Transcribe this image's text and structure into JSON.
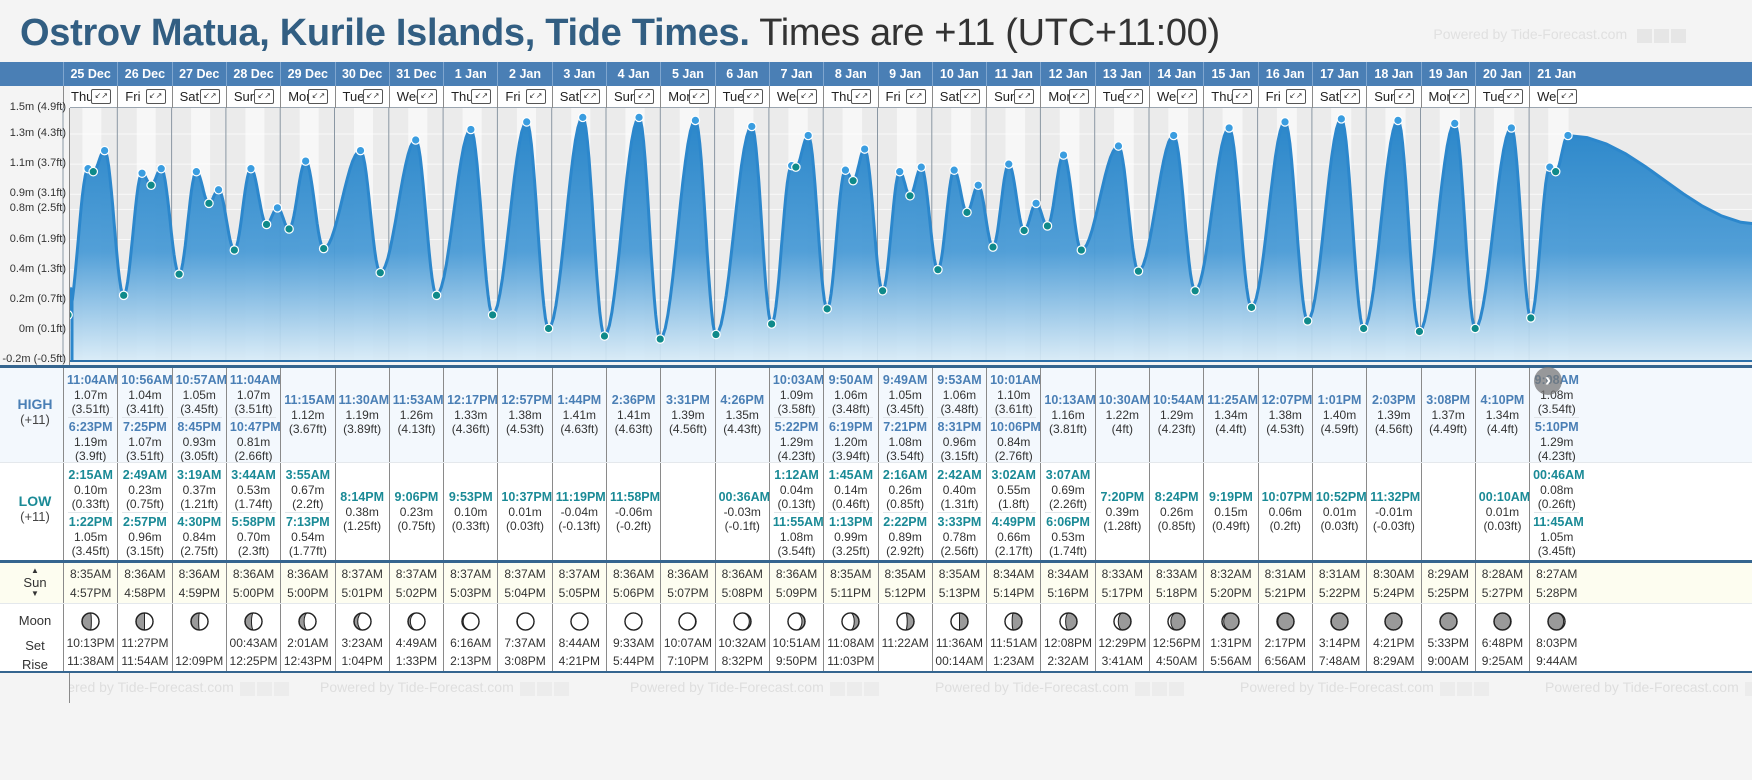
{
  "header": {
    "location_title": "Ostrov Matua, Kurile Islands, Tide Times.",
    "timezone_text": "Times are +11 (UTC+11:00)",
    "powered_by": "Powered by Tide-Forecast.com"
  },
  "labels": {
    "high": "HIGH",
    "high_sub": "(+11)",
    "low": "LOW",
    "low_sub": "(+11)",
    "sun": "Sun",
    "moon": "Moon",
    "moon_set": "Set",
    "moon_rise": "Rise",
    "expand_icon": "↙↗",
    "next_icon": "›"
  },
  "colors": {
    "header_blue": "#4a7fb5",
    "title_blue": "#325e82",
    "high_time": "#4a7fb5",
    "low_time": "#1a8a96",
    "tide_fill_top": "#2a86c9",
    "tide_line": "#2c87cc",
    "high_marker": "#3a9de0",
    "low_marker": "#0f8a8a"
  },
  "days": [
    {
      "date": "25 Dec",
      "dow": "Thu",
      "high": [
        {
          "t": "11:04AM",
          "m": "1.07m",
          "ft": "(3.51ft)"
        },
        {
          "t": "6:23PM",
          "m": "1.19m",
          "ft": "(3.9ft)"
        }
      ],
      "low": [
        {
          "t": "2:15AM",
          "m": "0.10m",
          "ft": "(0.33ft)"
        },
        {
          "t": "1:22PM",
          "m": "1.05m",
          "ft": "(3.45ft)"
        }
      ],
      "sunrise": "8:35AM",
      "sunset": "4:57PM",
      "moon_phase": "waxing-half",
      "moon_illum": 0.45,
      "moonset": "10:13PM",
      "moonrise": "11:38AM"
    },
    {
      "date": "26 Dec",
      "dow": "Fri",
      "high": [
        {
          "t": "10:56AM",
          "m": "1.04m",
          "ft": "(3.41ft)"
        },
        {
          "t": "7:25PM",
          "m": "1.07m",
          "ft": "(3.51ft)"
        }
      ],
      "low": [
        {
          "t": "2:49AM",
          "m": "0.23m",
          "ft": "(0.75ft)"
        },
        {
          "t": "2:57PM",
          "m": "0.96m",
          "ft": "(3.15ft)"
        }
      ],
      "sunrise": "8:36AM",
      "sunset": "4:58PM",
      "moon_phase": "waxing-half",
      "moon_illum": 0.5,
      "moonset": "11:27PM",
      "moonrise": "11:54AM"
    },
    {
      "date": "27 Dec",
      "dow": "Sat",
      "high": [
        {
          "t": "10:57AM",
          "m": "1.05m",
          "ft": "(3.45ft)"
        },
        {
          "t": "8:45PM",
          "m": "0.93m",
          "ft": "(3.05ft)"
        }
      ],
      "low": [
        {
          "t": "3:19AM",
          "m": "0.37m",
          "ft": "(1.21ft)"
        },
        {
          "t": "4:30PM",
          "m": "0.84m",
          "ft": "(2.75ft)"
        }
      ],
      "sunrise": "8:36AM",
      "sunset": "4:59PM",
      "moon_phase": "waxing-gibbous",
      "moon_illum": 0.55,
      "moonset": "",
      "moonrise": "12:09PM"
    },
    {
      "date": "28 Dec",
      "dow": "Sun",
      "high": [
        {
          "t": "11:04AM",
          "m": "1.07m",
          "ft": "(3.51ft)"
        },
        {
          "t": "10:47PM",
          "m": "0.81m",
          "ft": "(2.66ft)"
        }
      ],
      "low": [
        {
          "t": "3:44AM",
          "m": "0.53m",
          "ft": "(1.74ft)"
        },
        {
          "t": "5:58PM",
          "m": "0.70m",
          "ft": "(2.3ft)"
        }
      ],
      "sunrise": "8:36AM",
      "sunset": "5:00PM",
      "moon_phase": "waxing-gibbous",
      "moon_illum": 0.62,
      "moonset": "00:43AM",
      "moonrise": "12:25PM"
    },
    {
      "date": "29 Dec",
      "dow": "Mon",
      "high": [
        {
          "t": "11:15AM",
          "m": "1.12m",
          "ft": "(3.67ft)"
        }
      ],
      "low": [
        {
          "t": "3:55AM",
          "m": "0.67m",
          "ft": "(2.2ft)"
        },
        {
          "t": "7:13PM",
          "m": "0.54m",
          "ft": "(1.77ft)"
        }
      ],
      "sunrise": "8:36AM",
      "sunset": "5:00PM",
      "moon_phase": "waxing-gibbous",
      "moon_illum": 0.7,
      "moonset": "2:01AM",
      "moonrise": "12:43PM"
    },
    {
      "date": "30 Dec",
      "dow": "Tue",
      "high": [
        {
          "t": "11:30AM",
          "m": "1.19m",
          "ft": "(3.89ft)"
        }
      ],
      "low": [
        {
          "t": "8:14PM",
          "m": "0.38m",
          "ft": "(1.25ft)"
        }
      ],
      "sunrise": "8:37AM",
      "sunset": "5:01PM",
      "moon_phase": "waxing-gibbous",
      "moon_illum": 0.78,
      "moonset": "3:23AM",
      "moonrise": "1:04PM"
    },
    {
      "date": "31 Dec",
      "dow": "Wed",
      "high": [
        {
          "t": "11:53AM",
          "m": "1.26m",
          "ft": "(4.13ft)"
        }
      ],
      "low": [
        {
          "t": "9:06PM",
          "m": "0.23m",
          "ft": "(0.75ft)"
        }
      ],
      "sunrise": "8:37AM",
      "sunset": "5:02PM",
      "moon_phase": "waxing-gibbous",
      "moon_illum": 0.86,
      "moonset": "4:49AM",
      "moonrise": "1:33PM"
    },
    {
      "date": "1 Jan",
      "dow": "Thu",
      "high": [
        {
          "t": "12:17PM",
          "m": "1.33m",
          "ft": "(4.36ft)"
        }
      ],
      "low": [
        {
          "t": "9:53PM",
          "m": "0.10m",
          "ft": "(0.33ft)"
        }
      ],
      "sunrise": "8:37AM",
      "sunset": "5:03PM",
      "moon_phase": "waxing-gibbous",
      "moon_illum": 0.93,
      "moonset": "6:16AM",
      "moonrise": "2:13PM"
    },
    {
      "date": "2 Jan",
      "dow": "Fri",
      "high": [
        {
          "t": "12:57PM",
          "m": "1.38m",
          "ft": "(4.53ft)"
        }
      ],
      "low": [
        {
          "t": "10:37PM",
          "m": "0.01m",
          "ft": "(0.03ft)"
        }
      ],
      "sunrise": "8:37AM",
      "sunset": "5:04PM",
      "moon_phase": "full",
      "moon_illum": 0.98,
      "moonset": "7:37AM",
      "moonrise": "3:08PM"
    },
    {
      "date": "3 Jan",
      "dow": "Sat",
      "high": [
        {
          "t": "1:44PM",
          "m": "1.41m",
          "ft": "(4.63ft)"
        }
      ],
      "low": [
        {
          "t": "11:19PM",
          "m": "-0.04m",
          "ft": "(-0.13ft)"
        }
      ],
      "sunrise": "8:37AM",
      "sunset": "5:05PM",
      "moon_phase": "full",
      "moon_illum": 1.0,
      "moonset": "8:44AM",
      "moonrise": "4:21PM"
    },
    {
      "date": "4 Jan",
      "dow": "Sun",
      "high": [
        {
          "t": "2:36PM",
          "m": "1.41m",
          "ft": "(4.63ft)"
        }
      ],
      "low": [
        {
          "t": "11:58PM",
          "m": "-0.06m",
          "ft": "(-0.2ft)"
        }
      ],
      "sunrise": "8:36AM",
      "sunset": "5:06PM",
      "moon_phase": "full",
      "moon_illum": 1.0,
      "moonset": "9:33AM",
      "moonrise": "5:44PM"
    },
    {
      "date": "5 Jan",
      "dow": "Mon",
      "high": [
        {
          "t": "3:31PM",
          "m": "1.39m",
          "ft": "(4.56ft)"
        }
      ],
      "low": [],
      "sunrise": "8:36AM",
      "sunset": "5:07PM",
      "moon_phase": "waning-gibbous",
      "moon_illum": 0.97,
      "moonset": "10:07AM",
      "moonrise": "7:10PM"
    },
    {
      "date": "6 Jan",
      "dow": "Tue",
      "high": [
        {
          "t": "4:26PM",
          "m": "1.35m",
          "ft": "(4.43ft)"
        }
      ],
      "low": [
        {
          "t": "00:36AM",
          "m": "-0.03m",
          "ft": "(-0.1ft)"
        }
      ],
      "sunrise": "8:36AM",
      "sunset": "5:08PM",
      "moon_phase": "waning-gibbous",
      "moon_illum": 0.9,
      "moonset": "10:32AM",
      "moonrise": "8:32PM"
    },
    {
      "date": "7 Jan",
      "dow": "Wed",
      "high": [
        {
          "t": "10:03AM",
          "m": "1.09m",
          "ft": "(3.58ft)"
        },
        {
          "t": "5:22PM",
          "m": "1.29m",
          "ft": "(4.23ft)"
        }
      ],
      "low": [
        {
          "t": "1:12AM",
          "m": "0.04m",
          "ft": "(0.13ft)"
        },
        {
          "t": "11:55AM",
          "m": "1.08m",
          "ft": "(3.54ft)"
        }
      ],
      "sunrise": "8:36AM",
      "sunset": "5:09PM",
      "moon_phase": "waning-gibbous",
      "moon_illum": 0.82,
      "moonset": "10:51AM",
      "moonrise": "9:50PM"
    },
    {
      "date": "8 Jan",
      "dow": "Thu",
      "high": [
        {
          "t": "9:50AM",
          "m": "1.06m",
          "ft": "(3.48ft)"
        },
        {
          "t": "6:19PM",
          "m": "1.20m",
          "ft": "(3.94ft)"
        }
      ],
      "low": [
        {
          "t": "1:45AM",
          "m": "0.14m",
          "ft": "(0.46ft)"
        },
        {
          "t": "1:13PM",
          "m": "0.99m",
          "ft": "(3.25ft)"
        }
      ],
      "sunrise": "8:35AM",
      "sunset": "5:11PM",
      "moon_phase": "waning-gibbous",
      "moon_illum": 0.72,
      "moonset": "11:08AM",
      "moonrise": "11:03PM"
    },
    {
      "date": "9 Jan",
      "dow": "Fri",
      "high": [
        {
          "t": "9:49AM",
          "m": "1.05m",
          "ft": "(3.45ft)"
        },
        {
          "t": "7:21PM",
          "m": "1.08m",
          "ft": "(3.54ft)"
        }
      ],
      "low": [
        {
          "t": "2:16AM",
          "m": "0.26m",
          "ft": "(0.85ft)"
        },
        {
          "t": "2:22PM",
          "m": "0.89m",
          "ft": "(2.92ft)"
        }
      ],
      "sunrise": "8:35AM",
      "sunset": "5:12PM",
      "moon_phase": "waning-half",
      "moon_illum": 0.6,
      "moonset": "11:22AM",
      "moonrise": ""
    },
    {
      "date": "10 Jan",
      "dow": "Sat",
      "high": [
        {
          "t": "9:53AM",
          "m": "1.06m",
          "ft": "(3.48ft)"
        },
        {
          "t": "8:31PM",
          "m": "0.96m",
          "ft": "(3.15ft)"
        }
      ],
      "low": [
        {
          "t": "2:42AM",
          "m": "0.40m",
          "ft": "(1.31ft)"
        },
        {
          "t": "3:33PM",
          "m": "0.78m",
          "ft": "(2.56ft)"
        }
      ],
      "sunrise": "8:35AM",
      "sunset": "5:13PM",
      "moon_phase": "waning-half",
      "moon_illum": 0.5,
      "moonset": "11:36AM",
      "moonrise": "00:14AM"
    },
    {
      "date": "11 Jan",
      "dow": "Sun",
      "high": [
        {
          "t": "10:01AM",
          "m": "1.10m",
          "ft": "(3.61ft)"
        },
        {
          "t": "10:06PM",
          "m": "0.84m",
          "ft": "(2.76ft)"
        }
      ],
      "low": [
        {
          "t": "3:02AM",
          "m": "0.55m",
          "ft": "(1.8ft)"
        },
        {
          "t": "4:49PM",
          "m": "0.66m",
          "ft": "(2.17ft)"
        }
      ],
      "sunrise": "8:34AM",
      "sunset": "5:14PM",
      "moon_phase": "waning-half",
      "moon_illum": 0.42,
      "moonset": "11:51AM",
      "moonrise": "1:23AM"
    },
    {
      "date": "12 Jan",
      "dow": "Mon",
      "high": [
        {
          "t": "10:13AM",
          "m": "1.16m",
          "ft": "(3.81ft)"
        }
      ],
      "low": [
        {
          "t": "3:07AM",
          "m": "0.69m",
          "ft": "(2.26ft)"
        },
        {
          "t": "6:06PM",
          "m": "0.53m",
          "ft": "(1.74ft)"
        }
      ],
      "sunrise": "8:34AM",
      "sunset": "5:16PM",
      "moon_phase": "waning-crescent",
      "moon_illum": 0.33,
      "moonset": "12:08PM",
      "moonrise": "2:32AM"
    },
    {
      "date": "13 Jan",
      "dow": "Tue",
      "high": [
        {
          "t": "10:30AM",
          "m": "1.22m",
          "ft": "(4ft)"
        }
      ],
      "low": [
        {
          "t": "7:20PM",
          "m": "0.39m",
          "ft": "(1.28ft)"
        }
      ],
      "sunrise": "8:33AM",
      "sunset": "5:17PM",
      "moon_phase": "waning-crescent",
      "moon_illum": 0.25,
      "moonset": "12:29PM",
      "moonrise": "3:41AM"
    },
    {
      "date": "14 Jan",
      "dow": "Wed",
      "high": [
        {
          "t": "10:54AM",
          "m": "1.29m",
          "ft": "(4.23ft)"
        }
      ],
      "low": [
        {
          "t": "8:24PM",
          "m": "0.26m",
          "ft": "(0.85ft)"
        }
      ],
      "sunrise": "8:33AM",
      "sunset": "5:18PM",
      "moon_phase": "waning-crescent",
      "moon_illum": 0.17,
      "moonset": "12:56PM",
      "moonrise": "4:50AM"
    },
    {
      "date": "15 Jan",
      "dow": "Thu",
      "high": [
        {
          "t": "11:25AM",
          "m": "1.34m",
          "ft": "(4.4ft)"
        }
      ],
      "low": [
        {
          "t": "9:19PM",
          "m": "0.15m",
          "ft": "(0.49ft)"
        }
      ],
      "sunrise": "8:32AM",
      "sunset": "5:20PM",
      "moon_phase": "waning-crescent",
      "moon_illum": 0.1,
      "moonset": "1:31PM",
      "moonrise": "5:56AM"
    },
    {
      "date": "16 Jan",
      "dow": "Fri",
      "high": [
        {
          "t": "12:07PM",
          "m": "1.38m",
          "ft": "(4.53ft)"
        }
      ],
      "low": [
        {
          "t": "10:07PM",
          "m": "0.06m",
          "ft": "(0.2ft)"
        }
      ],
      "sunrise": "8:31AM",
      "sunset": "5:21PM",
      "moon_phase": "waning-crescent",
      "moon_illum": 0.05,
      "moonset": "2:17PM",
      "moonrise": "6:56AM"
    },
    {
      "date": "17 Jan",
      "dow": "Sat",
      "high": [
        {
          "t": "1:01PM",
          "m": "1.40m",
          "ft": "(4.59ft)"
        }
      ],
      "low": [
        {
          "t": "10:52PM",
          "m": "0.01m",
          "ft": "(0.03ft)"
        }
      ],
      "sunrise": "8:31AM",
      "sunset": "5:22PM",
      "moon_phase": "new",
      "moon_illum": 0.02,
      "moonset": "3:14PM",
      "moonrise": "7:48AM"
    },
    {
      "date": "18 Jan",
      "dow": "Sun",
      "high": [
        {
          "t": "2:03PM",
          "m": "1.39m",
          "ft": "(4.56ft)"
        }
      ],
      "low": [
        {
          "t": "11:32PM",
          "m": "-0.01m",
          "ft": "(-0.03ft)"
        }
      ],
      "sunrise": "8:30AM",
      "sunset": "5:24PM",
      "moon_phase": "new",
      "moon_illum": 0.0,
      "moonset": "4:21PM",
      "moonrise": "8:29AM"
    },
    {
      "date": "19 Jan",
      "dow": "Mon",
      "high": [
        {
          "t": "3:08PM",
          "m": "1.37m",
          "ft": "(4.49ft)"
        }
      ],
      "low": [],
      "sunrise": "8:29AM",
      "sunset": "5:25PM",
      "moon_phase": "new",
      "moon_illum": 0.0,
      "moonset": "5:33PM",
      "moonrise": "9:00AM"
    },
    {
      "date": "20 Jan",
      "dow": "Tue",
      "high": [
        {
          "t": "4:10PM",
          "m": "1.34m",
          "ft": "(4.4ft)"
        }
      ],
      "low": [
        {
          "t": "00:10AM",
          "m": "0.01m",
          "ft": "(0.03ft)"
        }
      ],
      "sunrise": "8:28AM",
      "sunset": "5:27PM",
      "moon_phase": "waxing-crescent",
      "moon_illum": 0.03,
      "moonset": "6:48PM",
      "moonrise": "9:25AM"
    },
    {
      "date": "21 Jan",
      "dow": "Wed",
      "high": [
        {
          "t": "9:08AM",
          "m": "1.08m",
          "ft": "(3.54ft)"
        },
        {
          "t": "5:10PM",
          "m": "1.29m",
          "ft": "(4.23ft)"
        }
      ],
      "low": [
        {
          "t": "00:46AM",
          "m": "0.08m",
          "ft": "(0.26ft)"
        },
        {
          "t": "11:45AM",
          "m": "1.05m",
          "ft": "(3.45ft)"
        }
      ],
      "sunrise": "8:27AM",
      "sunset": "5:28PM",
      "moon_phase": "waxing-crescent",
      "moon_illum": 0.08,
      "moonset": "8:03PM",
      "moonrise": "9:44AM"
    }
  ],
  "chart_data": {
    "type": "area",
    "title": "Ostrov Matua, Kurile Islands, Tide Times",
    "xlabel": "",
    "ylabel": "Tide height",
    "ylim": [
      -0.2,
      1.5
    ],
    "y_ticks": [
      "1.5m (4.9ft)",
      "1.3m (4.3ft)",
      "1.1m (3.7ft)",
      "0.9m (3.1ft)",
      "0.8m (2.5ft)",
      "0.6m (1.9ft)",
      "0.4m (1.3ft)",
      "0.2m (0.7ft)",
      "0m (0.1ft)",
      "-0.2m (-0.5ft)"
    ],
    "y_tick_values": [
      1.5,
      1.3,
      1.1,
      0.9,
      0.8,
      0.6,
      0.4,
      0.2,
      0.0,
      -0.2
    ],
    "x_categories": [
      "25 Dec",
      "26 Dec",
      "27 Dec",
      "28 Dec",
      "29 Dec",
      "30 Dec",
      "31 Dec",
      "1 Jan",
      "2 Jan",
      "3 Jan",
      "4 Jan",
      "5 Jan",
      "6 Jan",
      "7 Jan",
      "8 Jan",
      "9 Jan",
      "10 Jan",
      "11 Jan",
      "12 Jan",
      "13 Jan",
      "14 Jan",
      "15 Jan",
      "16 Jan",
      "17 Jan",
      "18 Jan",
      "19 Jan",
      "20 Jan",
      "21 Jan"
    ],
    "grid": true,
    "series": [
      {
        "name": "Tide height (m)",
        "points_from": "days.high + days.low (time, height) sorted chronologically"
      }
    ]
  }
}
